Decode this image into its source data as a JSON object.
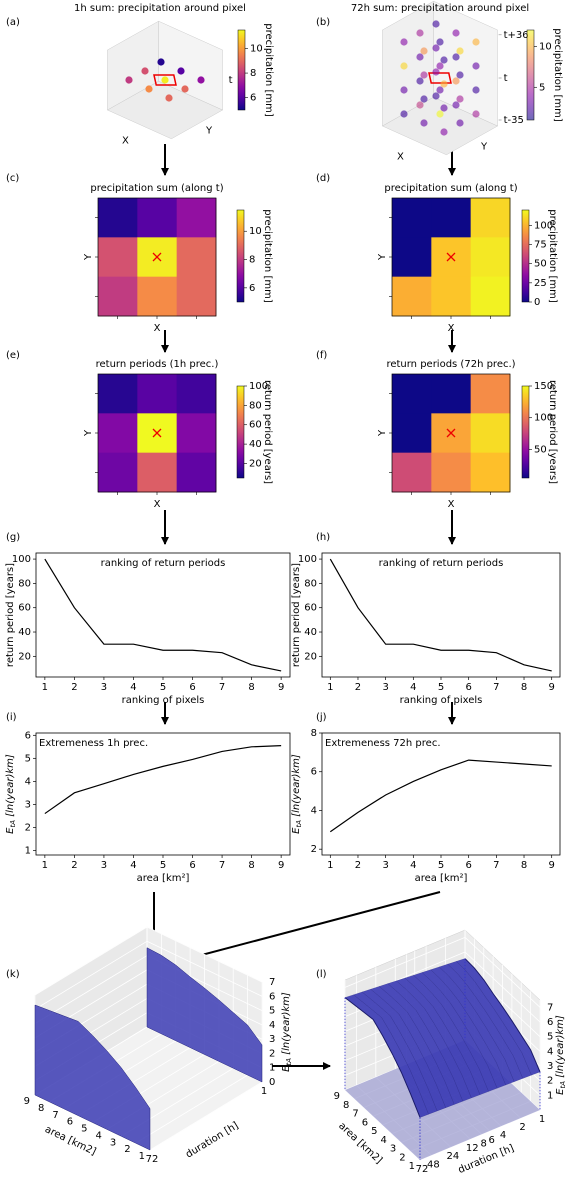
{
  "chart_data": [
    {
      "type": "scatter3d",
      "panel": "(a)",
      "title": "1h sum: precipitation around pixel",
      "xlabel": "X",
      "ylabel": "Y",
      "zlabel": "t",
      "x": [
        -1,
        0,
        1,
        -1,
        0,
        1,
        -1,
        0,
        1
      ],
      "y": [
        1,
        1,
        1,
        0,
        0,
        0,
        -1,
        -1,
        -1
      ],
      "values": [
        5.3,
        6,
        7,
        8.5,
        11.3,
        9,
        8,
        9.7,
        9
      ],
      "colormap": "plasma",
      "clabel": "precipitation [mm]",
      "clim": [
        5,
        11.5
      ],
      "cticks": [
        6,
        8,
        10
      ]
    },
    {
      "type": "scatter3d",
      "panel": "(b)",
      "title": "72h sum: precipitation around pixel",
      "xlabel": "X",
      "ylabel": "Y",
      "x": [
        -1,
        -1,
        -1,
        -1,
        0,
        0,
        0,
        0,
        1,
        1,
        1,
        1,
        -1,
        -1,
        -1,
        -1,
        0,
        0,
        0,
        0,
        1,
        1,
        1,
        1,
        -1,
        -1,
        -1,
        -1,
        0,
        0,
        0,
        0,
        1,
        1,
        1,
        1
      ],
      "y": [
        -1,
        -1,
        -1,
        -1,
        -1,
        -1,
        -1,
        -1,
        -1,
        -1,
        -1,
        -1,
        0,
        0,
        0,
        0,
        0,
        0,
        0,
        0,
        0,
        0,
        0,
        0,
        1,
        1,
        1,
        1,
        1,
        1,
        1,
        1,
        1,
        1,
        1,
        1
      ],
      "t": [
        -30,
        -10,
        10,
        30,
        -30,
        -10,
        10,
        30,
        -30,
        -10,
        10,
        30,
        -30,
        -10,
        10,
        30,
        -30,
        -10,
        10,
        30,
        -30,
        -10,
        10,
        30,
        -30,
        -10,
        10,
        30,
        -30,
        -10,
        10,
        30,
        -30,
        -10,
        10,
        30
      ],
      "values": [
        2,
        3,
        11,
        4,
        3,
        2,
        5,
        9,
        4,
        3,
        10,
        2,
        6,
        2,
        3,
        5,
        12,
        3,
        4,
        2,
        3,
        5,
        2,
        11,
        2,
        4,
        3,
        2,
        3,
        9,
        2,
        4,
        5,
        2,
        3,
        10
      ],
      "zlim": [
        -40,
        40
      ],
      "zticks": [
        {
          "value": -35,
          "label": "t-35"
        },
        {
          "value": 0,
          "label": "t"
        },
        {
          "value": 36,
          "label": "t+36"
        }
      ],
      "colormap": "plasma",
      "alpha": 0.6,
      "clabel": "precipitation [mm]",
      "clim": [
        1,
        12
      ],
      "cticks": [
        5,
        10
      ]
    },
    {
      "type": "heatmap",
      "panel": "(c)",
      "title": "precipitation sum (along t)",
      "xlabel": "X",
      "ylabel": "Y",
      "values": [
        [
          5.3,
          6,
          7
        ],
        [
          8.5,
          11.3,
          9
        ],
        [
          8,
          9.7,
          9
        ]
      ],
      "colormap": "plasma",
      "clabel": "precipitation [mm]",
      "clim": [
        5,
        11.5
      ],
      "cticks": [
        6,
        8,
        10
      ]
    },
    {
      "type": "heatmap",
      "panel": "(d)",
      "title": "precipitation sum (along t)",
      "xlabel": "X",
      "ylabel": "Y",
      "values": [
        [
          0,
          0,
          110
        ],
        [
          0,
          105,
          115
        ],
        [
          98,
          105,
          118
        ]
      ],
      "colormap": "plasma",
      "clabel": "precipitation [mm]",
      "clim": [
        0,
        120
      ],
      "cticks": [
        0,
        25,
        50,
        75,
        100
      ]
    },
    {
      "type": "heatmap",
      "panel": "(e)",
      "title": "return periods (1h prec.)",
      "xlabel": "X",
      "ylabel": "Y",
      "values": [
        [
          10,
          20,
          15
        ],
        [
          30,
          100,
          30
        ],
        [
          25,
          60,
          22
        ]
      ],
      "colormap": "plasma",
      "clabel": "return period [years]",
      "clim": [
        5,
        100
      ],
      "cticks": [
        20,
        40,
        60,
        80,
        100
      ]
    },
    {
      "type": "heatmap",
      "panel": "(f)",
      "title": "return periods (72h prec.)",
      "xlabel": "X",
      "ylabel": "Y",
      "values": [
        [
          5,
          5,
          110
        ],
        [
          5,
          120,
          140
        ],
        [
          80,
          110,
          130
        ]
      ],
      "colormap": "plasma",
      "clabel": "return period [years]",
      "clim": [
        5,
        150
      ],
      "cticks": [
        50,
        100,
        150
      ]
    },
    {
      "type": "line",
      "panel": "(g)",
      "title": "ranking of return periods",
      "title_loc": "center",
      "xlabel": "ranking of pixels",
      "ylabel": "return period [years]",
      "x": [
        1,
        2,
        3,
        4,
        5,
        6,
        7,
        8,
        9
      ],
      "values": [
        100,
        60,
        30,
        30,
        25,
        25,
        23,
        13,
        8
      ],
      "color": "#000000",
      "xlim": [
        0.7,
        9.3
      ],
      "xticks": [
        1,
        2,
        3,
        4,
        5,
        6,
        7,
        8,
        9
      ],
      "ylim": [
        3,
        105
      ],
      "yticks": [
        20,
        40,
        60,
        80,
        100
      ]
    },
    {
      "type": "line",
      "panel": "(h)",
      "title": "ranking of return periods",
      "title_loc": "center",
      "xlabel": "ranking of pixels",
      "ylabel": "return period [years]",
      "x": [
        1,
        2,
        3,
        4,
        5,
        6,
        7,
        8,
        9
      ],
      "values": [
        100,
        60,
        30,
        30,
        25,
        25,
        23,
        13,
        8
      ],
      "color": "#000000",
      "xlim": [
        0.7,
        9.3
      ],
      "xticks": [
        1,
        2,
        3,
        4,
        5,
        6,
        7,
        8,
        9
      ],
      "ylim": [
        3,
        105
      ],
      "yticks": [
        20,
        40,
        60,
        80,
        100
      ]
    },
    {
      "type": "line",
      "panel": "(i)",
      "title": "Extremeness  1h prec.",
      "title_loc": "left",
      "xlabel": "area [km²]",
      "ylabel": {
        "symbol": "E",
        "subscript": "tA",
        "unit": " [ln(year)km]"
      },
      "x": [
        1,
        2,
        3,
        4,
        5,
        6,
        7,
        8,
        9
      ],
      "values": [
        2.6,
        3.5,
        3.9,
        4.3,
        4.65,
        4.95,
        5.3,
        5.5,
        5.55
      ],
      "color": "#000000",
      "xlim": [
        0.7,
        9.3
      ],
      "xticks": [
        1,
        2,
        3,
        4,
        5,
        6,
        7,
        8,
        9
      ],
      "ylim": [
        0.8,
        6.1
      ],
      "yticks": [
        1,
        2,
        3,
        4,
        5,
        6
      ]
    },
    {
      "type": "line",
      "panel": "(j)",
      "title": "Extremeness  72h prec.",
      "title_loc": "left",
      "xlabel": "area [km²]",
      "ylabel": {
        "symbol": "E",
        "subscript": "tA",
        "unit": " [ln(year)km]"
      },
      "x": [
        1,
        2,
        3,
        4,
        5,
        6,
        7,
        8,
        9
      ],
      "values": [
        2.9,
        3.9,
        4.8,
        5.5,
        6.1,
        6.6,
        6.5,
        6.4,
        6.3
      ],
      "color": "#000000",
      "xlim": [
        0.7,
        9.3
      ],
      "xticks": [
        1,
        2,
        3,
        4,
        5,
        6,
        7,
        8,
        9
      ],
      "ylim": [
        1.7,
        8
      ],
      "yticks": [
        2,
        4,
        6,
        8
      ]
    },
    {
      "type": "surface3d",
      "mode": "slabs",
      "panel": "(k)",
      "xlabel": "area [km2]",
      "ylabel": "duration [h]",
      "zlabel": {
        "symbol": "E",
        "subscript": "tA",
        "unit": " [ln(year)km]"
      },
      "area": [
        1,
        2,
        3,
        4,
        5,
        6,
        7,
        8,
        9
      ],
      "duration_scale": "log",
      "color": "#3c3cb4",
      "series": [
        {
          "duration": 1,
          "values": [
            2.6,
            3.5,
            3.9,
            4.3,
            4.65,
            4.95,
            5.3,
            5.5,
            5.55
          ]
        },
        {
          "duration": 72,
          "values": [
            2.9,
            3.9,
            4.8,
            5.5,
            6.1,
            6.6,
            6.5,
            6.4,
            6.3
          ]
        }
      ],
      "area_lim": [
        1,
        9
      ],
      "duration_lim": [
        1,
        72
      ],
      "zlim": [
        0,
        7
      ],
      "area_ticks": [
        1,
        2,
        3,
        4,
        5,
        6,
        7,
        8,
        9
      ],
      "duration_ticks": [
        1,
        72
      ],
      "zticks": [
        0,
        1,
        2,
        3,
        4,
        5,
        6,
        7
      ]
    },
    {
      "type": "surface3d",
      "mode": "surface",
      "panel": "(l)",
      "xlabel": "area [km2]",
      "ylabel": "duration [h]",
      "zlabel": {
        "symbol": "E",
        "subscript": "tA",
        "unit": " [ln(year)km]"
      },
      "area": [
        1,
        2,
        3,
        4,
        5,
        6,
        7,
        8,
        9
      ],
      "duration_scale": "log",
      "color": "#3c3cb4",
      "series": [
        {
          "duration": 1,
          "values": [
            2.6,
            3.5,
            3.9,
            4.3,
            4.65,
            4.95,
            5.3,
            5.5,
            5.55
          ]
        },
        {
          "duration": 72,
          "values": [
            2.9,
            3.9,
            4.8,
            5.5,
            6.1,
            6.6,
            6.5,
            6.4,
            6.3
          ]
        }
      ],
      "area_lim": [
        1,
        9
      ],
      "duration_lim": [
        1,
        72
      ],
      "zlim": [
        0,
        7.5
      ],
      "area_ticks": [
        1,
        2,
        3,
        4,
        5,
        6,
        7,
        8,
        9
      ],
      "duration_ticks": [
        1,
        2,
        4,
        6,
        8,
        12,
        24,
        48,
        72
      ],
      "zticks": [
        1,
        2,
        3,
        4,
        5,
        6,
        7
      ]
    }
  ]
}
